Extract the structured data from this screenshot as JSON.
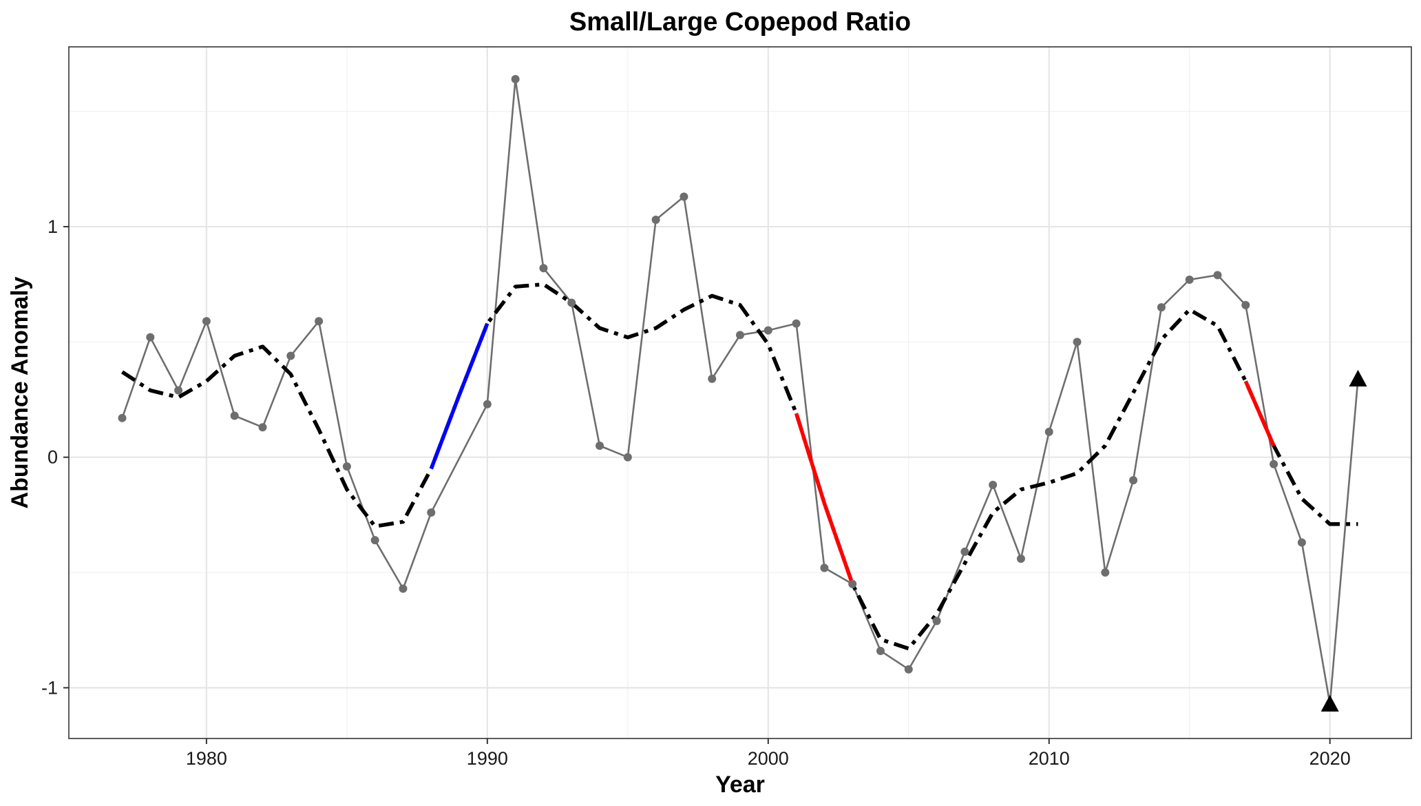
{
  "chart_data": {
    "type": "line",
    "title": "Small/Large Copepod Ratio",
    "xlabel": "Year",
    "ylabel": "Abundance Anomaly",
    "xlim": [
      1975.1,
      2022.9
    ],
    "ylim": [
      -1.22,
      1.78
    ],
    "x_ticks": [
      1980,
      1990,
      2000,
      2010,
      2020
    ],
    "x_tick_labels": [
      "1980",
      "1990",
      "2000",
      "2010",
      "2020"
    ],
    "y_ticks": [
      -1,
      0,
      1
    ],
    "y_tick_labels": [
      "-1",
      "0",
      "1"
    ],
    "grid": true,
    "legend": "none",
    "series": [
      {
        "role": "observed",
        "color": "#6e6e6e",
        "x": [
          1977,
          1978,
          1979,
          1980,
          1981,
          1982,
          1983,
          1984,
          1985,
          1986,
          1987,
          1988,
          1990,
          1991,
          1992,
          1993,
          1994,
          1995,
          1996,
          1997,
          1998,
          1999,
          2000,
          2001,
          2002,
          2003,
          2004,
          2005,
          2006,
          2007,
          2008,
          2009,
          2010,
          2011,
          2012,
          2013,
          2014,
          2015,
          2016,
          2017,
          2018,
          2019,
          2020,
          2021
        ],
        "y": [
          0.17,
          0.52,
          0.29,
          0.59,
          0.18,
          0.13,
          0.44,
          0.59,
          -0.04,
          -0.36,
          -0.57,
          -0.24,
          0.23,
          1.64,
          0.82,
          0.67,
          0.05,
          0.0,
          1.03,
          1.13,
          0.34,
          0.53,
          0.55,
          0.58,
          -0.48,
          -0.55,
          -0.84,
          -0.92,
          -0.71,
          -0.41,
          -0.12,
          -0.44,
          0.11,
          0.5,
          -0.5,
          -0.1,
          0.65,
          0.77,
          0.79,
          0.66,
          -0.03,
          -0.37,
          -1.07,
          0.34
        ]
      },
      {
        "role": "smoothed",
        "color": "#000000",
        "x": [
          1977,
          1978,
          1979,
          1980,
          1981,
          1982,
          1983,
          1984,
          1985,
          1986,
          1987,
          1988,
          1989,
          1990,
          1991,
          1992,
          1993,
          1994,
          1995,
          1996,
          1997,
          1998,
          1999,
          2000,
          2001,
          2002,
          2003,
          2004,
          2005,
          2006,
          2007,
          2008,
          2009,
          2010,
          2011,
          2012,
          2013,
          2014,
          2015,
          2016,
          2017,
          2018,
          2019,
          2020,
          2021
        ],
        "y": [
          0.37,
          0.29,
          0.26,
          0.33,
          0.44,
          0.48,
          0.36,
          0.12,
          -0.14,
          -0.3,
          -0.28,
          -0.05,
          0.27,
          0.58,
          0.74,
          0.75,
          0.67,
          0.56,
          0.52,
          0.56,
          0.64,
          0.7,
          0.66,
          0.49,
          0.19,
          -0.2,
          -0.55,
          -0.79,
          -0.83,
          -0.68,
          -0.46,
          -0.24,
          -0.14,
          -0.11,
          -0.07,
          0.05,
          0.28,
          0.51,
          0.64,
          0.57,
          0.33,
          0.05,
          -0.18,
          -0.29,
          -0.29
        ]
      }
    ],
    "trend_segments": [
      {
        "trend": "increasing",
        "color": "#0000ff",
        "x": [
          1988,
          1990
        ]
      },
      {
        "trend": "decreasing",
        "color": "#ff0000",
        "x": [
          2001,
          2003
        ]
      },
      {
        "trend": "decreasing",
        "color": "#ff0000",
        "x": [
          2017,
          2018
        ]
      }
    ],
    "triangle_markers": [
      {
        "x": 2020,
        "y": -1.07
      },
      {
        "x": 2021,
        "y": 0.34
      }
    ]
  }
}
